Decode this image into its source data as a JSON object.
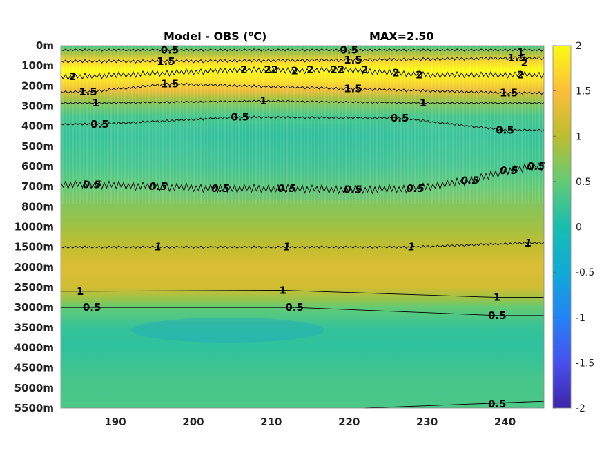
{
  "chart_data": {
    "type": "heatmap",
    "title": "Model - OBS (",
    "title_sup": "o",
    "title_unit": "C)",
    "max_label": "MAX=2.50",
    "xlabel": "",
    "ylabel": "",
    "x_range": [
      183,
      245
    ],
    "x_ticks": [
      190,
      200,
      210,
      220,
      230,
      240
    ],
    "y_levels": [
      "0m",
      "100m",
      "200m",
      "300m",
      "400m",
      "500m",
      "600m",
      "700m",
      "800m",
      "1000m",
      "1500m",
      "2000m",
      "2500m",
      "3000m",
      "3500m",
      "4000m",
      "4500m",
      "5000m",
      "5500m"
    ],
    "colorbar": {
      "ticks": [
        "2",
        "1.5",
        "1",
        "0.5",
        "0",
        "-0.5",
        "-1",
        "-1.5",
        "-2"
      ],
      "range": [
        -2,
        2
      ],
      "colormap": "parula"
    },
    "depth_profile": [
      {
        "level": 0.0,
        "value": 0.3
      },
      {
        "level": 0.4,
        "value": 0.9
      },
      {
        "level": 0.8,
        "value": 1.7
      },
      {
        "level": 1.2,
        "value": 2.0
      },
      {
        "level": 1.7,
        "value": 1.8
      },
      {
        "level": 2.2,
        "value": 1.4
      },
      {
        "level": 2.6,
        "value": 0.9
      },
      {
        "level": 3.0,
        "value": 0.6
      },
      {
        "level": 3.5,
        "value": 0.3
      },
      {
        "level": 4.5,
        "value": 0.2
      },
      {
        "level": 6.0,
        "value": 0.3
      },
      {
        "level": 7.0,
        "value": 0.5
      },
      {
        "level": 8.0,
        "value": 0.7
      },
      {
        "level": 9.0,
        "value": 0.85
      },
      {
        "level": 10.0,
        "value": 1.05
      },
      {
        "level": 11.0,
        "value": 1.25
      },
      {
        "level": 12.0,
        "value": 1.15
      },
      {
        "level": 12.6,
        "value": 0.8
      },
      {
        "level": 13.0,
        "value": 0.5
      },
      {
        "level": 14.0,
        "value": 0.2
      },
      {
        "level": 15.0,
        "value": 0.15
      },
      {
        "level": 16.5,
        "value": 0.3
      },
      {
        "level": 18.0,
        "value": 0.35
      }
    ],
    "contour_labels": [
      {
        "text": "0.5",
        "x": 197,
        "level": 0.22
      },
      {
        "text": "0.5",
        "x": 220,
        "level": 0.22
      },
      {
        "text": "1",
        "x": 242,
        "level": 0.35
      },
      {
        "text": "1.5",
        "x": 196.5,
        "level": 0.78
      },
      {
        "text": "1.5",
        "x": 220.5,
        "level": 0.72
      },
      {
        "text": "1.5",
        "x": 241.5,
        "level": 0.62
      },
      {
        "text": "2",
        "x": 184.5,
        "level": 1.55
      },
      {
        "text": "2",
        "x": 206.5,
        "level": 1.2
      },
      {
        "text": "22",
        "x": 210,
        "level": 1.2
      },
      {
        "text": "2",
        "x": 213,
        "level": 1.25
      },
      {
        "text": "2",
        "x": 215,
        "level": 1.2
      },
      {
        "text": "22",
        "x": 218.5,
        "level": 1.2
      },
      {
        "text": "2",
        "x": 222,
        "level": 1.2
      },
      {
        "text": "2",
        "x": 226,
        "level": 1.35
      },
      {
        "text": "2",
        "x": 229,
        "level": 1.45
      },
      {
        "text": "2",
        "x": 242,
        "level": 1.45
      },
      {
        "text": "2",
        "x": 242.5,
        "level": 0.85
      },
      {
        "text": "1.5",
        "x": 186.5,
        "level": 2.3
      },
      {
        "text": "1.5",
        "x": 197,
        "level": 1.9
      },
      {
        "text": "1.5",
        "x": 220.5,
        "level": 2.15
      },
      {
        "text": "1.5",
        "x": 240.5,
        "level": 2.35
      },
      {
        "text": "1",
        "x": 187.5,
        "level": 2.85
      },
      {
        "text": "1",
        "x": 209,
        "level": 2.75
      },
      {
        "text": "1",
        "x": 229.5,
        "level": 2.85
      },
      {
        "text": "0.5",
        "x": 188,
        "level": 3.9
      },
      {
        "text": "0.5",
        "x": 206,
        "level": 3.55
      },
      {
        "text": "0.5",
        "x": 226.5,
        "level": 3.6
      },
      {
        "text": "0.5",
        "x": 240,
        "level": 4.2
      },
      {
        "text": "0.5",
        "x": 187,
        "level": 6.9
      },
      {
        "text": "0.5",
        "x": 195.5,
        "level": 7.0
      },
      {
        "text": "0.5",
        "x": 203.5,
        "level": 7.1
      },
      {
        "text": "0.5",
        "x": 212,
        "level": 7.1
      },
      {
        "text": "0.5",
        "x": 220.5,
        "level": 7.15
      },
      {
        "text": "0.5",
        "x": 228.5,
        "level": 7.1
      },
      {
        "text": "0.5",
        "x": 235.5,
        "level": 6.7
      },
      {
        "text": "0.5",
        "x": 240.5,
        "level": 6.2
      },
      {
        "text": "0.5",
        "x": 244,
        "level": 6.0
      },
      {
        "text": "1",
        "x": 195.5,
        "level": 10.0
      },
      {
        "text": "1",
        "x": 212,
        "level": 10.0
      },
      {
        "text": "1",
        "x": 228,
        "level": 10.0
      },
      {
        "text": "1",
        "x": 243,
        "level": 9.8
      },
      {
        "text": "1",
        "x": 185.5,
        "level": 12.2
      },
      {
        "text": "1",
        "x": 211.5,
        "level": 12.15
      },
      {
        "text": "1",
        "x": 239,
        "level": 12.5
      },
      {
        "text": "0.5",
        "x": 187,
        "level": 13.0
      },
      {
        "text": "0.5",
        "x": 213,
        "level": 13.0
      },
      {
        "text": "0.5",
        "x": 239,
        "level": 13.4
      },
      {
        "text": "0.5",
        "x": 239,
        "level": 17.8
      }
    ]
  }
}
